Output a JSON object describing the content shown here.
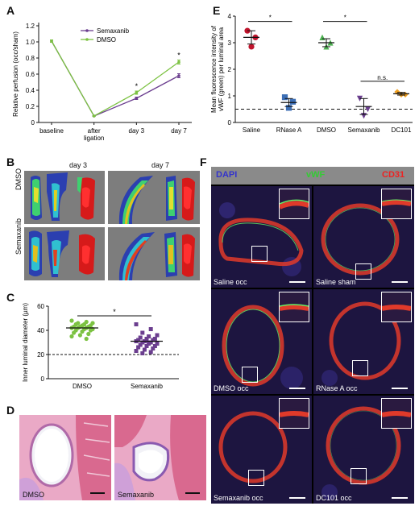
{
  "panels": {
    "a": "A",
    "b": "B",
    "c": "C",
    "d": "D",
    "e": "E",
    "f": "F"
  },
  "chart_data": [
    {
      "type": "line",
      "panel": "A",
      "categories": [
        "baseline",
        "after ligation",
        "day 3",
        "day 7"
      ],
      "series": [
        {
          "name": "Semaxanib",
          "values": [
            1.01,
            0.08,
            0.3,
            0.58
          ],
          "errors": [
            0.015,
            0.005,
            0.015,
            0.025
          ],
          "color": "#6b3e8f"
        },
        {
          "name": "DMSO",
          "values": [
            1.01,
            0.08,
            0.37,
            0.75
          ],
          "errors": [
            0.015,
            0.005,
            0.02,
            0.025
          ],
          "color": "#7cc242"
        }
      ],
      "ylabel": "Relative perfusion (occ/sham)",
      "ylim": [
        0,
        1.2
      ],
      "yticks": [
        "0",
        "0.2",
        "0.4",
        "0.6",
        "0.8",
        "1.0",
        "1.2"
      ],
      "significance": [
        "*",
        "*"
      ],
      "legend": "top-right"
    },
    {
      "type": "scatter",
      "panel": "C",
      "categories": [
        "DMSO",
        "Semaxanib"
      ],
      "series": [
        {
          "name": "DMSO",
          "color": "#7cc242",
          "mean": 42,
          "values": [
            48,
            47,
            46,
            46,
            45,
            45,
            44,
            44,
            43,
            43,
            43,
            42,
            42,
            42,
            41,
            41,
            40,
            40,
            39,
            38,
            37,
            36,
            35,
            33
          ]
        },
        {
          "name": "Semaxanib",
          "color": "#6b3e8f",
          "mean": 31,
          "values": [
            45,
            41,
            38,
            36,
            35,
            34,
            33,
            33,
            32,
            32,
            31,
            31,
            30,
            30,
            29,
            29,
            28,
            27,
            27,
            26,
            25,
            24,
            23,
            22,
            21
          ]
        }
      ],
      "ylabel": "Inner luminal diameter (µm)",
      "ylim": [
        0,
        60
      ],
      "yticks": [
        "0",
        "20",
        "40",
        "60"
      ],
      "reference_line": 20,
      "significance": "*"
    },
    {
      "type": "scatter",
      "panel": "E",
      "categories": [
        "Saline",
        "RNase A",
        "DMSO",
        "Semaxanib",
        "DC101"
      ],
      "series": [
        {
          "name": "Saline",
          "color": "#c0142c",
          "marker": "circle",
          "mean": 3.2,
          "sem": 0.25,
          "values": [
            3.45,
            3.2,
            2.85
          ]
        },
        {
          "name": "RNase A",
          "color": "#3d6fb5",
          "marker": "square",
          "mean": 0.75,
          "sem": 0.15,
          "values": [
            0.95,
            0.78,
            0.55
          ]
        },
        {
          "name": "DMSO",
          "color": "#4caf50",
          "marker": "triangle-up",
          "mean": 3.0,
          "sem": 0.15,
          "values": [
            3.2,
            3.0,
            2.85
          ]
        },
        {
          "name": "Semaxanib",
          "color": "#6b3e8f",
          "marker": "triangle-down",
          "mean": 0.6,
          "sem": 0.3,
          "values": [
            0.9,
            0.5,
            0.25
          ]
        },
        {
          "name": "DC101",
          "color": "#f0a020",
          "marker": "diamond",
          "mean": 1.08,
          "sem": 0.05,
          "values": [
            1.15,
            1.05,
            1.05
          ]
        }
      ],
      "ylabel": "Mean fluorescence intensity of vWF (green) per luminal area",
      "ylim": [
        0,
        4
      ],
      "yticks": [
        "0",
        "1",
        "2",
        "3",
        "4"
      ],
      "reference_line": 0.5,
      "significance": [
        "*",
        "*",
        "n.s."
      ]
    }
  ],
  "panel_b": {
    "columns": [
      "day 3",
      "day 7"
    ],
    "rows": [
      "DMSO",
      "Semaxanib"
    ]
  },
  "panel_d": {
    "labels": [
      "DMSO",
      "Semaxanib"
    ]
  },
  "panel_f": {
    "header": {
      "dapi": "DAPI",
      "vwf": "vWF",
      "cd31": "CD31"
    },
    "header_colors": {
      "dapi": "#3333cc",
      "vwf": "#33cc33",
      "cd31": "#ee2222"
    },
    "labels": [
      "Saline occ",
      "Saline sham",
      "DMSO occ",
      "RNase A occ",
      "Semaxanib occ",
      "DC101 occ"
    ]
  }
}
